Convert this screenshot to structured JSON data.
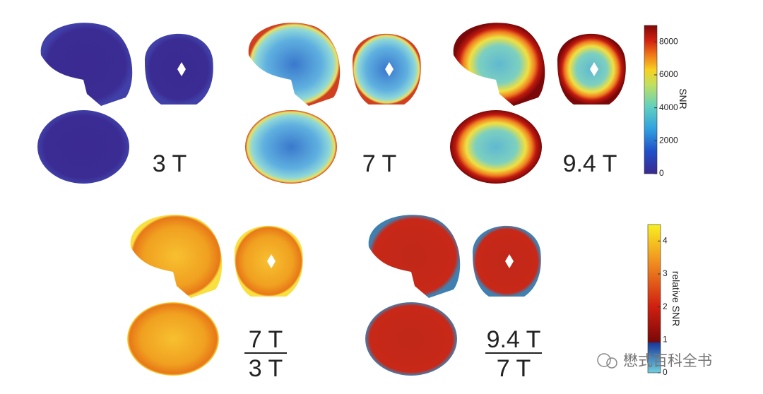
{
  "top_panels": [
    {
      "label": "3 T"
    },
    {
      "label": "7 T"
    },
    {
      "label": "9.4 T"
    }
  ],
  "bottom_panels": [
    {
      "numerator": "7 T",
      "denominator": "3 T"
    },
    {
      "numerator": "9.4 T",
      "denominator": "7 T"
    }
  ],
  "snr_colorbar": {
    "label": "SNR",
    "lim": [
      0,
      9000
    ],
    "ticks": [
      0,
      2000,
      4000,
      6000,
      8000
    ]
  },
  "relative_colorbar": {
    "label": "relative SNR",
    "lim": [
      0,
      4.5
    ],
    "ticks": [
      0,
      1,
      2,
      3,
      4
    ]
  },
  "watermark": "懋式百科全书"
}
